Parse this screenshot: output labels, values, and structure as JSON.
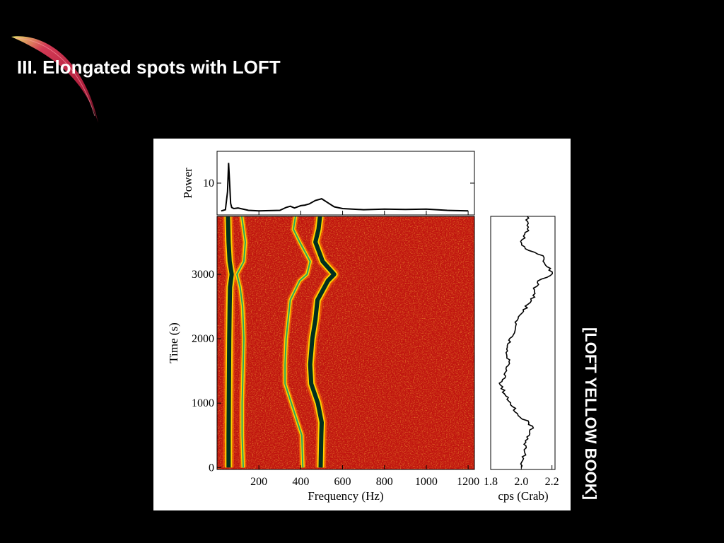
{
  "slide": {
    "title": "III. Elongated spots with LOFT",
    "side_note": "[LOFT YELLOW BOOK]"
  },
  "colors": {
    "background": "#000000",
    "title_text": "#ffffff",
    "spectrogram_background": "#c0150f",
    "ridge_core": "#003020",
    "ridge_halo": "#ffd200"
  },
  "chart_data": [
    {
      "type": "line",
      "panel": "power-spectrum",
      "ylabel": "Power",
      "yticks": [
        "10"
      ],
      "x": [
        20,
        40,
        50,
        55,
        60,
        65,
        70,
        80,
        100,
        150,
        200,
        250,
        300,
        330,
        350,
        370,
        400,
        420,
        440,
        470,
        500,
        530,
        560,
        600,
        700,
        800,
        900,
        1000,
        1100,
        1200
      ],
      "y": [
        5.2,
        5.4,
        8.5,
        13.5,
        10.0,
        6.5,
        5.8,
        5.6,
        5.7,
        5.3,
        5.2,
        5.25,
        5.3,
        5.8,
        6.0,
        5.7,
        6.1,
        6.2,
        6.4,
        7.0,
        7.3,
        6.6,
        5.9,
        5.6,
        5.4,
        5.5,
        5.45,
        5.5,
        5.3,
        5.2
      ],
      "xlim": [
        0,
        1230
      ],
      "ylim": [
        4.5,
        15.5
      ]
    },
    {
      "type": "heatmap",
      "panel": "dynamic-power-spectrum",
      "xlabel": "Frequency (Hz)",
      "ylabel": "Time (s)",
      "xticks": [
        "200",
        "400",
        "600",
        "800",
        "1000",
        "1200"
      ],
      "yticks": [
        "0",
        "1000",
        "2000",
        "3000"
      ],
      "xlim": [
        0,
        1230
      ],
      "ylim": [
        -30,
        3900
      ],
      "ridges": [
        {
          "name": "fundamental",
          "time": [
            0,
            500,
            1000,
            1500,
            2000,
            2500,
            2800,
            3000,
            3200,
            3500,
            3900
          ],
          "freq": [
            55,
            55,
            56,
            57,
            58,
            60,
            62,
            70,
            60,
            55,
            52
          ]
        },
        {
          "name": "harmonic",
          "time": [
            0,
            500,
            1000,
            1500,
            2000,
            2500,
            2800,
            3000,
            3200,
            3500,
            3900
          ],
          "freq": [
            125,
            120,
            120,
            124,
            128,
            122,
            110,
            95,
            128,
            135,
            118
          ]
        },
        {
          "name": "lower-khz",
          "time": [
            0,
            500,
            700,
            1000,
            1300,
            1600,
            2000,
            2300,
            2600,
            2900,
            3000,
            3200,
            3500,
            3700,
            3900
          ],
          "freq": [
            410,
            405,
            385,
            355,
            325,
            325,
            330,
            340,
            350,
            395,
            430,
            445,
            395,
            365,
            375
          ]
        },
        {
          "name": "upper-khz",
          "time": [
            0,
            500,
            700,
            1000,
            1300,
            1600,
            2000,
            2300,
            2600,
            2900,
            3000,
            3200,
            3500,
            3700,
            3900
          ],
          "freq": [
            495,
            498,
            500,
            482,
            450,
            445,
            455,
            470,
            480,
            530,
            560,
            505,
            470,
            485,
            492
          ]
        }
      ]
    },
    {
      "type": "line",
      "panel": "count-rate",
      "xlabel": "cps (Crab)",
      "xticks": [
        "1.8",
        "2.0",
        "2.2"
      ],
      "xlim": [
        1.8,
        2.22
      ],
      "ylim": [
        -30,
        3900
      ],
      "time": [
        0,
        200,
        400,
        600,
        700,
        800,
        1000,
        1200,
        1300,
        1400,
        1600,
        1800,
        2000,
        2200,
        2400,
        2600,
        2800,
        2900,
        3000,
        3100,
        3300,
        3400,
        3500,
        3700,
        3900
      ],
      "rate": [
        2.0,
        2.02,
        2.03,
        2.07,
        2.05,
        1.98,
        1.93,
        1.88,
        1.86,
        1.89,
        1.92,
        1.9,
        1.93,
        1.96,
        2.0,
        2.07,
        2.09,
        2.12,
        2.2,
        2.18,
        2.13,
        2.03,
        2.0,
        2.05,
        2.04
      ]
    }
  ]
}
